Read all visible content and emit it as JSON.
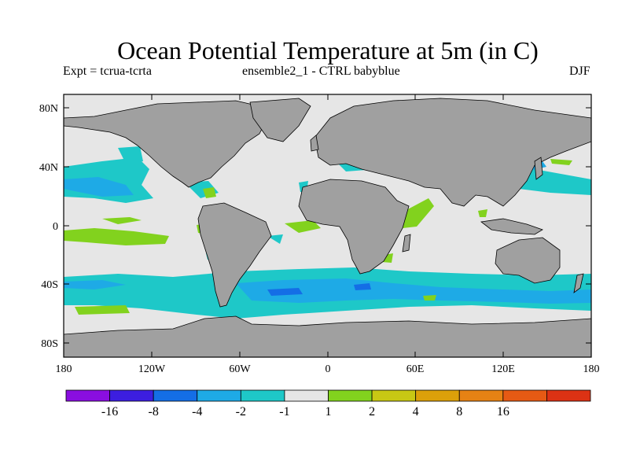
{
  "title": "Ocean Potential Temperature at 5m (in C)",
  "subtitle_left": "Expt = tcrua-tcrta",
  "subtitle_center": "ensemble2_1 - CTRL babyblue",
  "subtitle_right": "DJF",
  "lat_labels": [
    "80N",
    "40N",
    "0",
    "40S",
    "80S"
  ],
  "lon_labels": [
    "180",
    "120W",
    "60W",
    "0",
    "60E",
    "120E",
    "180"
  ],
  "colorbar": {
    "colors": [
      "#8a0ee0",
      "#3c1ee0",
      "#146ee6",
      "#1eaae6",
      "#1ec8c8",
      "#e6e6e6",
      "#82d21e",
      "#c8c814",
      "#dca00a",
      "#e68214",
      "#e65a14",
      "#dc3214"
    ],
    "labels": [
      "-16",
      "-8",
      "-4",
      "-2",
      "-1",
      "1",
      "2",
      "4",
      "8",
      "16"
    ]
  },
  "map_colors": {
    "ocean": "#e6e6e6",
    "land": "#a0a0a0",
    "coast": "#000000"
  }
}
